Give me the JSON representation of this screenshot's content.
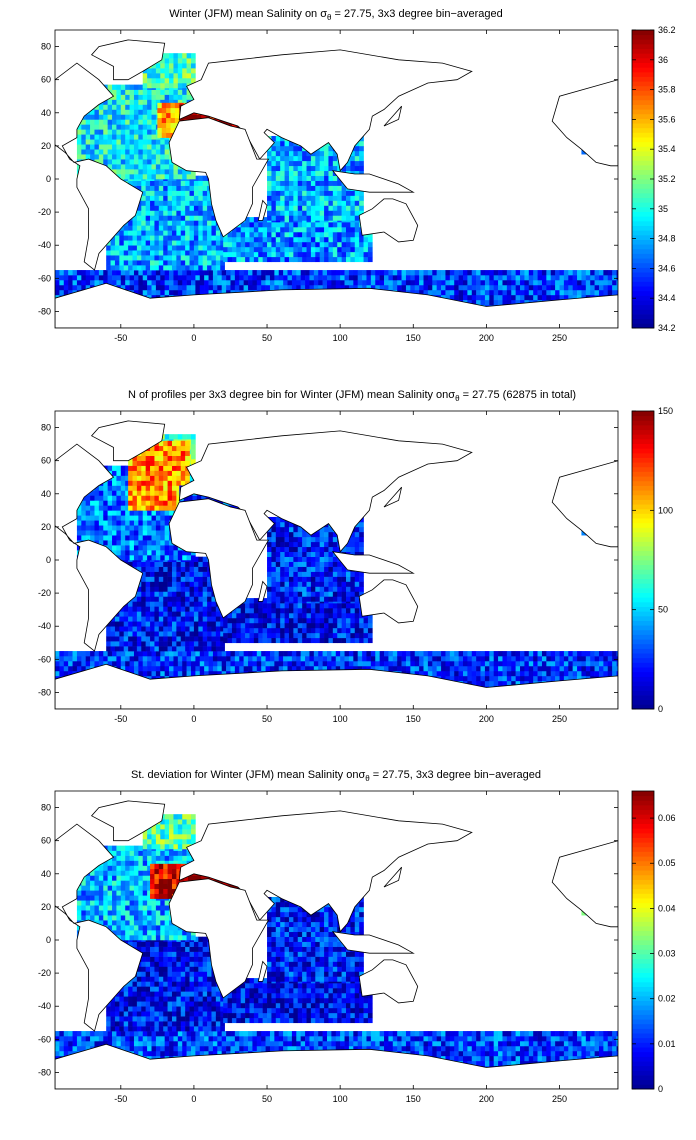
{
  "colormap": "jet",
  "colormap_stops": [
    "#00008f",
    "#0000ff",
    "#00ffff",
    "#ffff00",
    "#ff0000",
    "#800000"
  ],
  "ocean_mask_color": "#ffffff",
  "chart_data": [
    {
      "type": "heatmap",
      "title_parts": {
        "pre": "Winter (JFM) mean Salinity on ",
        "sigma": "σ",
        "sub": "θ",
        "post": " = 27.75, 3x3 degree bin−averaged"
      },
      "xlim": [
        -95,
        290
      ],
      "ylim": [
        -90,
        90
      ],
      "xticks": [
        "-50",
        "0",
        "50",
        "100",
        "150",
        "200",
        "250"
      ],
      "xtick_values": [
        -50,
        0,
        50,
        100,
        150,
        200,
        250
      ],
      "yticks": [
        "80",
        "60",
        "40",
        "20",
        "0",
        "-20",
        "-40",
        "-60",
        "-80"
      ],
      "ytick_values": [
        80,
        60,
        40,
        20,
        0,
        -20,
        -40,
        -60,
        -80
      ],
      "colorbar": {
        "min": 34.2,
        "max": 36.2,
        "ticks": [
          "36.2",
          "36",
          "35.8",
          "35.6",
          "35.4",
          "35.2",
          "35",
          "34.8",
          "34.6",
          "34.4",
          "34.2"
        ],
        "tick_values": [
          36.2,
          36.0,
          35.8,
          35.6,
          35.4,
          35.2,
          35.0,
          34.8,
          34.6,
          34.4,
          34.2
        ]
      },
      "grid": false,
      "regions": [
        {
          "lon": [
            -95,
            290
          ],
          "lat": [
            -82,
            -55
          ],
          "value": 34.55
        },
        {
          "lon": [
            -60,
            20
          ],
          "lat": [
            -55,
            0
          ],
          "value": 34.8
        },
        {
          "lon": [
            20,
            120
          ],
          "lat": [
            -50,
            -25
          ],
          "value": 34.75
        },
        {
          "lon": [
            50,
            115
          ],
          "lat": [
            -25,
            25
          ],
          "value": 34.8
        },
        {
          "lon": [
            -80,
            0
          ],
          "lat": [
            0,
            55
          ],
          "value": 34.95
        },
        {
          "lon": [
            -35,
            0
          ],
          "lat": [
            55,
            75
          ],
          "value": 35.1
        },
        {
          "lon": [
            -25,
            -5
          ],
          "lat": [
            25,
            45
          ],
          "value": 35.6
        },
        {
          "lon": [
            -10,
            40
          ],
          "lat": [
            30,
            45
          ],
          "value": 36.1
        },
        {
          "lon": [
            265,
            290
          ],
          "lat": [
            15,
            50
          ],
          "value": 34.85
        }
      ]
    },
    {
      "type": "heatmap",
      "title_parts": {
        "pre": "N of profiles per 3x3 degree bin for Winter (JFM) mean Salinity on",
        "sigma": "σ",
        "sub": "θ",
        "post": " = 27.75 (62875 in total)"
      },
      "xlim": [
        -95,
        290
      ],
      "ylim": [
        -90,
        90
      ],
      "xticks": [
        "-50",
        "0",
        "50",
        "100",
        "150",
        "200",
        "250"
      ],
      "xtick_values": [
        -50,
        0,
        50,
        100,
        150,
        200,
        250
      ],
      "yticks": [
        "80",
        "60",
        "40",
        "20",
        "0",
        "-20",
        "-40",
        "-60",
        "-80"
      ],
      "ytick_values": [
        80,
        60,
        40,
        20,
        0,
        -20,
        -40,
        -60,
        -80
      ],
      "colorbar": {
        "min": 0,
        "max": 150,
        "ticks": [
          "150",
          "100",
          "50",
          "0"
        ],
        "tick_values": [
          150,
          100,
          50,
          0
        ]
      },
      "grid": false,
      "regions": [
        {
          "lon": [
            -95,
            290
          ],
          "lat": [
            -82,
            -55
          ],
          "value": 25
        },
        {
          "lon": [
            -60,
            20
          ],
          "lat": [
            -55,
            0
          ],
          "value": 20
        },
        {
          "lon": [
            20,
            120
          ],
          "lat": [
            -50,
            -25
          ],
          "value": 18
        },
        {
          "lon": [
            50,
            115
          ],
          "lat": [
            -25,
            25
          ],
          "value": 22
        },
        {
          "lon": [
            -80,
            0
          ],
          "lat": [
            0,
            55
          ],
          "value": 35
        },
        {
          "lon": [
            -35,
            0
          ],
          "lat": [
            55,
            75
          ],
          "value": 70
        },
        {
          "lon": [
            -45,
            -5
          ],
          "lat": [
            30,
            70
          ],
          "value": 110
        },
        {
          "lon": [
            -10,
            40
          ],
          "lat": [
            30,
            45
          ],
          "value": 30
        },
        {
          "lon": [
            265,
            290
          ],
          "lat": [
            15,
            50
          ],
          "value": 40
        }
      ]
    },
    {
      "type": "heatmap",
      "title_parts": {
        "pre": "St. deviation for Winter (JFM) mean Salinity on",
        "sigma": "σ",
        "sub": "θ",
        "post": " = 27.75, 3x3 degree bin−averaged"
      },
      "xlim": [
        -95,
        290
      ],
      "ylim": [
        -90,
        90
      ],
      "xticks": [
        "-50",
        "0",
        "50",
        "100",
        "150",
        "200",
        "250"
      ],
      "xtick_values": [
        -50,
        0,
        50,
        100,
        150,
        200,
        250
      ],
      "yticks": [
        "80",
        "60",
        "40",
        "20",
        "0",
        "-20",
        "-40",
        "-60",
        "-80"
      ],
      "ytick_values": [
        80,
        60,
        40,
        20,
        0,
        -20,
        -40,
        -60,
        -80
      ],
      "colorbar": {
        "min": 0,
        "max": 0.066,
        "ticks": [
          "0.06",
          "0.05",
          "0.04",
          "0.03",
          "0.02",
          "0.01",
          "0"
        ],
        "tick_values": [
          0.06,
          0.05,
          0.04,
          0.03,
          0.02,
          0.01,
          0
        ]
      },
      "grid": false,
      "regions": [
        {
          "lon": [
            -95,
            290
          ],
          "lat": [
            -82,
            -55
          ],
          "value": 0.012
        },
        {
          "lon": [
            -60,
            20
          ],
          "lat": [
            -55,
            0
          ],
          "value": 0.008
        },
        {
          "lon": [
            20,
            120
          ],
          "lat": [
            -50,
            -25
          ],
          "value": 0.007
        },
        {
          "lon": [
            50,
            115
          ],
          "lat": [
            -25,
            25
          ],
          "value": 0.009
        },
        {
          "lon": [
            -80,
            0
          ],
          "lat": [
            0,
            55
          ],
          "value": 0.02
        },
        {
          "lon": [
            -35,
            0
          ],
          "lat": [
            55,
            75
          ],
          "value": 0.03
        },
        {
          "lon": [
            -30,
            -5
          ],
          "lat": [
            25,
            45
          ],
          "value": 0.06
        },
        {
          "lon": [
            -10,
            40
          ],
          "lat": [
            30,
            45
          ],
          "value": 0.066
        },
        {
          "lon": [
            265,
            290
          ],
          "lat": [
            15,
            50
          ],
          "value": 0.025
        }
      ]
    }
  ]
}
